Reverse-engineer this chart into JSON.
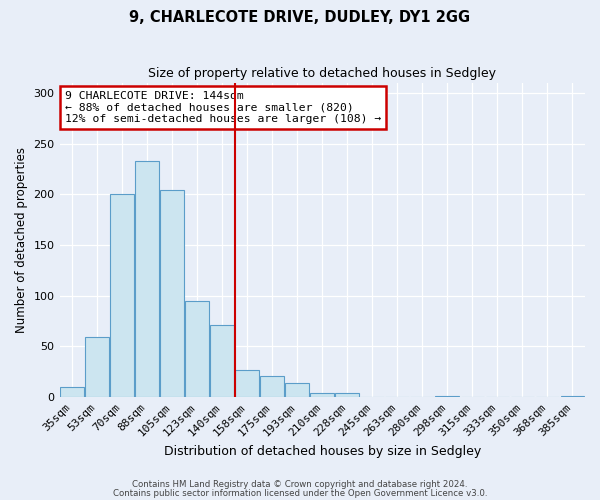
{
  "title_line1": "9, CHARLECOTE DRIVE, DUDLEY, DY1 2GG",
  "title_line2": "Size of property relative to detached houses in Sedgley",
  "xlabel": "Distribution of detached houses by size in Sedgley",
  "ylabel": "Number of detached properties",
  "bar_labels": [
    "35sqm",
    "53sqm",
    "70sqm",
    "88sqm",
    "105sqm",
    "123sqm",
    "140sqm",
    "158sqm",
    "175sqm",
    "193sqm",
    "210sqm",
    "228sqm",
    "245sqm",
    "263sqm",
    "280sqm",
    "298sqm",
    "315sqm",
    "333sqm",
    "350sqm",
    "368sqm",
    "385sqm"
  ],
  "bar_values": [
    10,
    59,
    200,
    233,
    204,
    95,
    71,
    27,
    21,
    14,
    4,
    4,
    0,
    0,
    0,
    1,
    0,
    0,
    0,
    0,
    1
  ],
  "bar_color": "#cce5f0",
  "bar_edge_color": "#5b9dc9",
  "reference_line_index": 6.5,
  "reference_line_color": "#cc0000",
  "annotation_line1": "9 CHARLECOTE DRIVE: 144sqm",
  "annotation_line2": "← 88% of detached houses are smaller (820)",
  "annotation_line3": "12% of semi-detached houses are larger (108) →",
  "annotation_box_color": "#ffffff",
  "annotation_box_edge_color": "#cc0000",
  "ylim": [
    0,
    310
  ],
  "background_color": "#e8eef8",
  "grid_color": "#ffffff",
  "footer_line1": "Contains HM Land Registry data © Crown copyright and database right 2024.",
  "footer_line2": "Contains public sector information licensed under the Open Government Licence v3.0."
}
